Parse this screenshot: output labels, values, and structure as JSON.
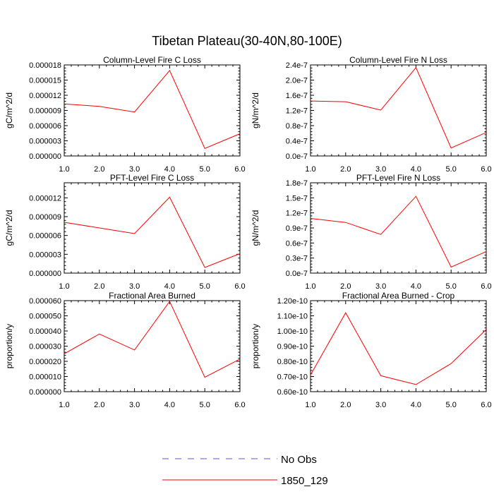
{
  "title": "Tibetan Plateau(30-40N,80-100E)",
  "colors": {
    "series": "#ff0000",
    "obs": "#5a5acd",
    "axis": "#000000"
  },
  "legend": [
    {
      "label": "No Obs",
      "style": "dashed",
      "color": "#5a5acd"
    },
    {
      "label": "1850_129",
      "style": "solid",
      "color": "#ff0000"
    }
  ],
  "chart_data": [
    {
      "type": "line",
      "title": "Column-Level Fire C Loss",
      "ylabel": "gC/m^2/d",
      "xlim": [
        1,
        6
      ],
      "ylim": [
        0,
        1.8e-05
      ],
      "xticks": [
        "1.0",
        "2.0",
        "3.0",
        "4.0",
        "5.0",
        "6.0"
      ],
      "yticks": [
        {
          "v": 0,
          "label": "0.000000"
        },
        {
          "v": 3e-06,
          "label": "0.000003"
        },
        {
          "v": 6e-06,
          "label": "0.000006"
        },
        {
          "v": 9e-06,
          "label": "0.000009"
        },
        {
          "v": 1.2e-05,
          "label": "0.000012"
        },
        {
          "v": 1.5e-05,
          "label": "0.000015"
        },
        {
          "v": 1.8e-05,
          "label": "0.000018"
        }
      ],
      "series": [
        {
          "name": "1850_129",
          "x": [
            1,
            2,
            3,
            4,
            5,
            6
          ],
          "values": [
            1.03e-05,
            9.8e-06,
            8.7e-06,
            1.69e-05,
            1.5e-06,
            4.4e-06
          ]
        }
      ]
    },
    {
      "type": "line",
      "title": "Column-Level Fire N Loss",
      "ylabel": "gN/m^2/d",
      "xlim": [
        1,
        6
      ],
      "ylim": [
        0,
        2.4e-07
      ],
      "xticks": [
        "1.0",
        "2.0",
        "3.0",
        "4.0",
        "5.0",
        "6.0"
      ],
      "yticks": [
        {
          "v": 0,
          "label": "0.0e-7"
        },
        {
          "v": 4e-08,
          "label": "0.4e-7"
        },
        {
          "v": 8e-08,
          "label": "0.8e-7"
        },
        {
          "v": 1.2e-07,
          "label": "1.2e-7"
        },
        {
          "v": 1.6e-07,
          "label": "1.6e-7"
        },
        {
          "v": 2e-07,
          "label": "2.0e-7"
        },
        {
          "v": 2.4e-07,
          "label": "2.4e-7"
        }
      ],
      "series": [
        {
          "name": "1850_129",
          "x": [
            1,
            2,
            3,
            4,
            5,
            6
          ],
          "values": [
            1.45e-07,
            1.43e-07,
            1.21e-07,
            2.33e-07,
            2.1e-08,
            6.2e-08
          ]
        }
      ]
    },
    {
      "type": "line",
      "title": "PFT-Level Fire C Loss",
      "ylabel": "gC/m^2/d",
      "xlim": [
        1,
        6
      ],
      "ylim": [
        0,
        1.44e-05
      ],
      "xticks": [
        "1.0",
        "2.0",
        "3.0",
        "4.0",
        "5.0",
        "6.0"
      ],
      "yticks": [
        {
          "v": 0,
          "label": "0.000000"
        },
        {
          "v": 3e-06,
          "label": "0.000003"
        },
        {
          "v": 6e-06,
          "label": "0.000006"
        },
        {
          "v": 9e-06,
          "label": "0.000009"
        },
        {
          "v": 1.2e-05,
          "label": "0.000012"
        }
      ],
      "series": [
        {
          "name": "1850_129",
          "x": [
            1,
            2,
            3,
            4,
            5,
            6
          ],
          "values": [
            8.1e-06,
            7.2e-06,
            6.3e-06,
            1.21e-05,
            9e-07,
            3.1e-06
          ]
        }
      ]
    },
    {
      "type": "line",
      "title": "PFT-Level Fire N Loss",
      "ylabel": "gN/m^2/d",
      "xlim": [
        1,
        6
      ],
      "ylim": [
        0,
        1.8e-07
      ],
      "xticks": [
        "1.0",
        "2.0",
        "3.0",
        "4.0",
        "5.0",
        "6.0"
      ],
      "yticks": [
        {
          "v": 0,
          "label": "0.0e-7"
        },
        {
          "v": 3e-08,
          "label": "0.3e-7"
        },
        {
          "v": 6e-08,
          "label": "0.6e-7"
        },
        {
          "v": 9e-08,
          "label": "0.9e-7"
        },
        {
          "v": 1.2e-07,
          "label": "1.2e-7"
        },
        {
          "v": 1.5e-07,
          "label": "1.5e-7"
        },
        {
          "v": 1.8e-07,
          "label": "1.8e-7"
        }
      ],
      "series": [
        {
          "name": "1850_129",
          "x": [
            1,
            2,
            3,
            4,
            5,
            6
          ],
          "values": [
            1.09e-07,
            1.01e-07,
            7.7e-08,
            1.53e-07,
            1.2e-08,
            4.3e-08
          ]
        }
      ]
    },
    {
      "type": "line",
      "title": "Fractional Area Burned",
      "ylabel": "proportion/y",
      "xlim": [
        1,
        6
      ],
      "ylim": [
        0,
        6e-05
      ],
      "xticks": [
        "1.0",
        "2.0",
        "3.0",
        "4.0",
        "5.0",
        "6.0"
      ],
      "yticks": [
        {
          "v": 0,
          "label": "0.000000"
        },
        {
          "v": 1e-05,
          "label": "0.000010"
        },
        {
          "v": 2e-05,
          "label": "0.000020"
        },
        {
          "v": 3e-05,
          "label": "0.000030"
        },
        {
          "v": 4e-05,
          "label": "0.000040"
        },
        {
          "v": 5e-05,
          "label": "0.000050"
        },
        {
          "v": 6e-05,
          "label": "0.000060"
        }
      ],
      "series": [
        {
          "name": "1850_129",
          "x": [
            1,
            2,
            3,
            4,
            5,
            6
          ],
          "values": [
            2.5e-05,
            3.8e-05,
            2.75e-05,
            5.95e-05,
            9.5e-06,
            2.15e-05
          ]
        }
      ]
    },
    {
      "type": "line",
      "title": "Fractional Area Burned - Crop",
      "ylabel": "proportion/y",
      "xlim": [
        1,
        6
      ],
      "ylim": [
        6e-11,
        1.2e-10
      ],
      "xticks": [
        "1.0",
        "2.0",
        "3.0",
        "4.0",
        "5.0",
        "6.0"
      ],
      "yticks": [
        {
          "v": 6e-11,
          "label": "0.60e-10"
        },
        {
          "v": 7e-11,
          "label": "0.70e-10"
        },
        {
          "v": 8e-11,
          "label": "0.80e-10"
        },
        {
          "v": 9e-11,
          "label": "0.90e-10"
        },
        {
          "v": 1e-10,
          "label": "1.00e-10"
        },
        {
          "v": 1.1e-10,
          "label": "1.10e-10"
        },
        {
          "v": 1.2e-10,
          "label": "1.20e-10"
        }
      ],
      "series": [
        {
          "name": "1850_129",
          "x": [
            1,
            2,
            3,
            4,
            5,
            6
          ],
          "values": [
            7.1e-11,
            1.12e-10,
            7.05e-11,
            6.47e-11,
            7.85e-11,
            1.01e-10
          ]
        }
      ]
    }
  ]
}
